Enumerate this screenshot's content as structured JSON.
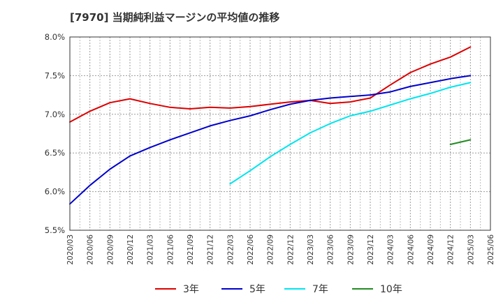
{
  "chart_data": {
    "type": "line",
    "title": "[7970]  当期純利益マージンの平均値の推移",
    "xlabel": "",
    "ylabel": "",
    "x_ticks": [
      "2020/03",
      "2020/06",
      "2020/09",
      "2020/12",
      "2021/03",
      "2021/06",
      "2021/09",
      "2021/12",
      "2022/03",
      "2022/06",
      "2022/09",
      "2022/12",
      "2023/03",
      "2023/06",
      "2023/09",
      "2023/12",
      "2024/03",
      "2024/06",
      "2024/09",
      "2024/12",
      "2025/03",
      "2025/06"
    ],
    "y_ticks": [
      "8.0%",
      "7.5%",
      "7.0%",
      "6.5%",
      "6.0%",
      "5.5%"
    ],
    "ylim": [
      5.5,
      8.0
    ],
    "y_unit": "%",
    "grid": true,
    "legend_position": "bottom",
    "series": [
      {
        "name": "3年",
        "color": "#dd0000",
        "x": [
          "2020/03",
          "2020/06",
          "2020/09",
          "2020/12",
          "2021/03",
          "2021/06",
          "2021/09",
          "2021/12",
          "2022/03",
          "2022/06",
          "2022/09",
          "2022/12",
          "2023/03",
          "2023/06",
          "2023/09",
          "2023/12",
          "2024/03",
          "2024/06",
          "2024/09",
          "2024/12",
          "2025/03"
        ],
        "values": [
          6.9,
          7.04,
          7.15,
          7.2,
          7.14,
          7.09,
          7.07,
          7.09,
          7.08,
          7.1,
          7.13,
          7.16,
          7.18,
          7.14,
          7.16,
          7.21,
          7.38,
          7.54,
          7.65,
          7.74,
          7.87
        ]
      },
      {
        "name": "5年",
        "color": "#0000cc",
        "x": [
          "2020/03",
          "2020/06",
          "2020/09",
          "2020/12",
          "2021/03",
          "2021/06",
          "2021/09",
          "2021/12",
          "2022/03",
          "2022/06",
          "2022/09",
          "2022/12",
          "2023/03",
          "2023/06",
          "2023/09",
          "2023/12",
          "2024/03",
          "2024/06",
          "2024/09",
          "2024/12",
          "2025/03"
        ],
        "values": [
          5.84,
          6.08,
          6.29,
          6.46,
          6.57,
          6.67,
          6.76,
          6.85,
          6.92,
          6.98,
          7.06,
          7.13,
          7.18,
          7.21,
          7.23,
          7.25,
          7.29,
          7.36,
          7.41,
          7.46,
          7.5
        ]
      },
      {
        "name": "7年",
        "color": "#00e5ee",
        "x": [
          "2022/03",
          "2022/06",
          "2022/09",
          "2022/12",
          "2023/03",
          "2023/06",
          "2023/09",
          "2023/12",
          "2024/03",
          "2024/06",
          "2024/09",
          "2024/12",
          "2025/03"
        ],
        "values": [
          6.1,
          6.27,
          6.45,
          6.61,
          6.76,
          6.88,
          6.98,
          7.04,
          7.12,
          7.2,
          7.27,
          7.35,
          7.41
        ]
      },
      {
        "name": "10年",
        "color": "#228b22",
        "x": [
          "2024/12",
          "2025/03"
        ],
        "values": [
          6.61,
          6.67
        ]
      }
    ]
  }
}
